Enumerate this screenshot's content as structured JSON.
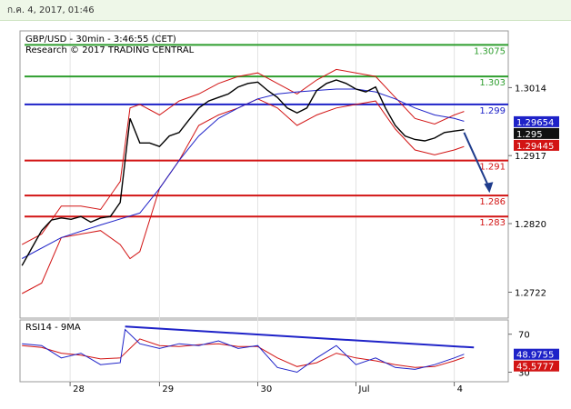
{
  "window": {
    "timestamp": "ก.ค. 4, 2017, 01:46"
  },
  "chart_data": [
    {
      "type": "line",
      "title": "GBP/USD - 30min - 3:46:55 (CET)",
      "subtitle": "Research © 2017 TRADING CENTRAL",
      "ylim": [
        1.2685,
        1.3095
      ],
      "y_ticks": [
        1.3014,
        1.2917,
        1.282,
        1.2722
      ],
      "y_tick_labels": [
        "1.3014",
        "1.2917",
        "1.2820",
        "1.2722"
      ],
      "x_ticks": [
        {
          "x": 0.09,
          "label": "28"
        },
        {
          "x": 1.0,
          "label": "29"
        },
        {
          "x": 2.0,
          "label": "30"
        },
        {
          "x": 3.0,
          "label": "Jul"
        },
        {
          "x": 4.0,
          "label": "4"
        }
      ],
      "levels": [
        {
          "value": 1.3075,
          "label": "1.3075",
          "color": "#2e9e2e"
        },
        {
          "value": 1.303,
          "label": "1.303",
          "color": "#2e9e2e"
        },
        {
          "value": 1.299,
          "label": "1.299",
          "color": "#1e22c8"
        },
        {
          "value": 1.291,
          "label": "1.291",
          "color": "#d21414"
        },
        {
          "value": 1.286,
          "label": "1.286",
          "color": "#d21414"
        },
        {
          "value": 1.283,
          "label": "1.283",
          "color": "#d21414"
        }
      ],
      "badges": [
        {
          "value": 1.29654,
          "label": "1.29654",
          "color": "#1e22c8"
        },
        {
          "value": 1.295,
          "label": "1.295",
          "color": "#111111"
        },
        {
          "value": 1.29445,
          "label": "1.29445",
          "color": "#d21414"
        }
      ],
      "close": {
        "x": [
          -0.4,
          -0.3,
          -0.2,
          -0.1,
          0.0,
          0.1,
          0.2,
          0.3,
          0.4,
          0.5,
          0.6,
          0.7,
          0.8,
          0.9,
          1.0,
          1.1,
          1.2,
          1.3,
          1.4,
          1.5,
          1.6,
          1.7,
          1.8,
          1.9,
          2.0,
          2.1,
          2.2,
          2.3,
          2.4,
          2.5,
          2.6,
          2.7,
          2.8,
          2.9,
          3.0,
          3.1,
          3.2,
          3.3,
          3.4,
          3.5,
          3.6,
          3.7,
          3.8,
          3.9,
          4.0,
          4.1
        ],
        "y": [
          1.276,
          1.2785,
          1.281,
          1.2825,
          1.2828,
          1.2826,
          1.283,
          1.2822,
          1.2828,
          1.283,
          1.285,
          1.297,
          1.2935,
          1.2935,
          1.293,
          1.2945,
          1.295,
          1.2968,
          1.2985,
          1.2995,
          1.3,
          1.3005,
          1.3015,
          1.302,
          1.3022,
          1.301,
          1.3,
          1.2985,
          1.2978,
          1.2985,
          1.301,
          1.302,
          1.3025,
          1.302,
          1.3012,
          1.3008,
          1.3015,
          1.2985,
          1.296,
          1.2945,
          1.294,
          1.2938,
          1.2942,
          1.295,
          1.2952,
          1.2954
        ],
        "color": "#000000"
      },
      "bollinger_upper": {
        "x": [
          -0.4,
          -0.2,
          0.0,
          0.2,
          0.4,
          0.6,
          0.7,
          0.8,
          1.0,
          1.2,
          1.4,
          1.6,
          1.8,
          2.0,
          2.2,
          2.4,
          2.6,
          2.8,
          3.0,
          3.2,
          3.4,
          3.6,
          3.8,
          4.0,
          4.1
        ],
        "y": [
          1.279,
          1.2805,
          1.2845,
          1.2845,
          1.284,
          1.288,
          1.2985,
          1.299,
          1.2975,
          1.2995,
          1.3005,
          1.302,
          1.303,
          1.3035,
          1.302,
          1.3005,
          1.3025,
          1.304,
          1.3035,
          1.303,
          1.3,
          1.297,
          1.2962,
          1.2975,
          1.298
        ],
        "color": "#d21414"
      },
      "bollinger_lower": {
        "x": [
          -0.4,
          -0.2,
          0.0,
          0.2,
          0.4,
          0.6,
          0.7,
          0.8,
          1.0,
          1.2,
          1.4,
          1.6,
          1.8,
          2.0,
          2.2,
          2.4,
          2.6,
          2.8,
          3.0,
          3.2,
          3.4,
          3.6,
          3.8,
          4.0,
          4.1
        ],
        "y": [
          1.272,
          1.2735,
          1.28,
          1.2805,
          1.281,
          1.279,
          1.277,
          1.278,
          1.287,
          1.291,
          1.296,
          1.2975,
          1.2985,
          1.2998,
          1.2985,
          1.296,
          1.2975,
          1.2985,
          1.299,
          1.2995,
          1.2955,
          1.2925,
          1.2918,
          1.2925,
          1.293
        ],
        "color": "#d21414"
      },
      "moving_average": {
        "x": [
          -0.4,
          0.0,
          0.4,
          0.8,
          1.0,
          1.2,
          1.4,
          1.6,
          1.8,
          2.0,
          2.2,
          2.4,
          2.6,
          2.8,
          3.0,
          3.2,
          3.4,
          3.6,
          3.8,
          4.0,
          4.1
        ],
        "y": [
          1.277,
          1.28,
          1.2818,
          1.2835,
          1.287,
          1.291,
          1.2945,
          1.297,
          1.2985,
          1.2998,
          1.3005,
          1.3008,
          1.301,
          1.3012,
          1.3012,
          1.3008,
          1.2998,
          1.2985,
          1.2975,
          1.297,
          1.2966
        ],
        "color": "#1e22c8"
      },
      "forecast_arrow": {
        "from": {
          "x": 4.1,
          "y": 1.295
        },
        "to": {
          "x": 4.35,
          "y": 1.2865
        },
        "color": "#1e3c8c"
      }
    },
    {
      "type": "line",
      "title": "RSI14 - 9MA",
      "ylim": [
        20,
        85
      ],
      "y_ticks": [
        70,
        30
      ],
      "y_tick_labels": [
        "70",
        "30"
      ],
      "badges": [
        {
          "value": 48.9755,
          "label": "48.9755",
          "color": "#1e22c8"
        },
        {
          "value": 45.5777,
          "label": "45.5777",
          "color": "#d21414"
        }
      ],
      "rsi": {
        "x": [
          -0.4,
          -0.2,
          0.0,
          0.2,
          0.4,
          0.6,
          0.65,
          0.8,
          1.0,
          1.2,
          1.4,
          1.6,
          1.8,
          2.0,
          2.2,
          2.4,
          2.6,
          2.8,
          3.0,
          3.2,
          3.4,
          3.6,
          3.8,
          4.0,
          4.1
        ],
        "y": [
          60,
          58,
          45,
          50,
          38,
          40,
          75,
          60,
          55,
          60,
          58,
          63,
          55,
          58,
          35,
          30,
          45,
          58,
          38,
          45,
          35,
          33,
          38,
          45,
          48.9755
        ],
        "color": "#1e22c8"
      },
      "rsi_ma": {
        "x": [
          -0.4,
          -0.2,
          0.0,
          0.2,
          0.4,
          0.6,
          0.8,
          1.0,
          1.2,
          1.4,
          1.6,
          1.8,
          2.0,
          2.2,
          2.4,
          2.6,
          2.8,
          3.0,
          3.2,
          3.4,
          3.6,
          3.8,
          4.0,
          4.1
        ],
        "y": [
          58,
          56,
          50,
          48,
          44,
          45,
          65,
          58,
          57,
          59,
          60,
          57,
          57,
          45,
          36,
          40,
          50,
          45,
          42,
          38,
          35,
          36,
          42,
          45.5777
        ],
        "color": "#d21414"
      },
      "trendline": {
        "from": {
          "x": 0.65,
          "y": 78
        },
        "to": {
          "x": 4.2,
          "y": 56
        },
        "color": "#1e22c8"
      }
    }
  ]
}
